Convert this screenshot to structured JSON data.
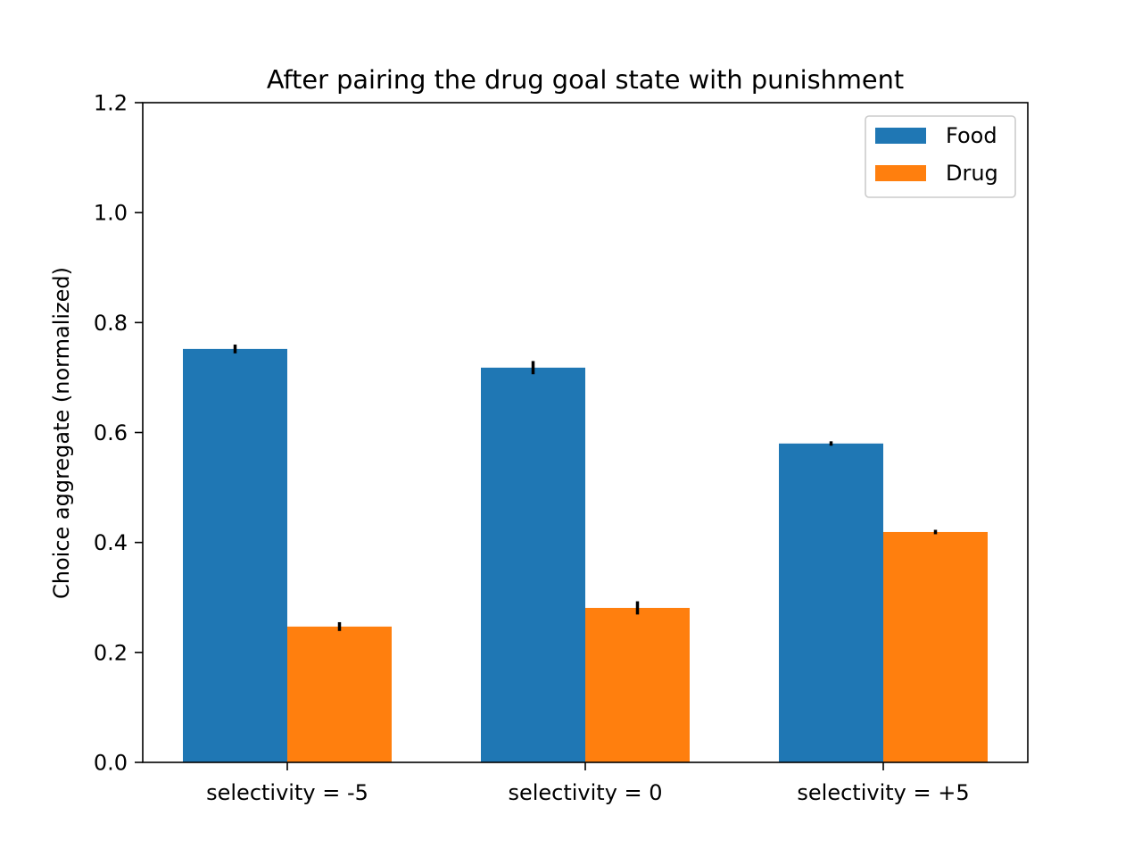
{
  "chart_data": {
    "type": "bar",
    "title": "After pairing the drug goal state with punishment",
    "xlabel": "",
    "ylabel": "Choice aggregate (normalized)",
    "categories": [
      "selectivity = -5",
      "selectivity = 0",
      "selectivity = +5"
    ],
    "ylim": [
      0,
      1.2
    ],
    "yticks": [
      "0.0",
      "0.2",
      "0.4",
      "0.6",
      "0.8",
      "1.0",
      "1.2"
    ],
    "grid": false,
    "legend_position": "top-right",
    "series": [
      {
        "name": "Food",
        "color": "#1f77b4",
        "values": [
          0.752,
          0.718,
          0.58
        ],
        "errors": [
          0.008,
          0.012,
          0.004
        ]
      },
      {
        "name": "Drug",
        "color": "#ff7f0e",
        "values": [
          0.247,
          0.281,
          0.419
        ],
        "errors": [
          0.008,
          0.012,
          0.004
        ]
      }
    ]
  }
}
